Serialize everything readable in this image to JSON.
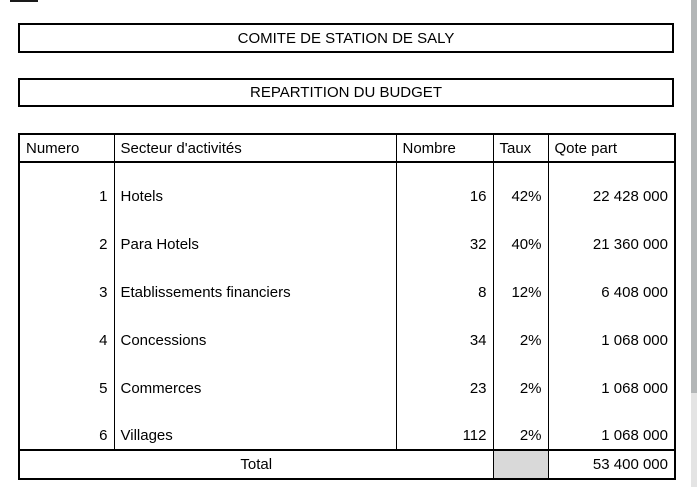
{
  "banners": {
    "title": "COMITE DE STATION DE SALY",
    "subtitle": "REPARTITION DU BUDGET"
  },
  "table": {
    "columns": [
      "Numero",
      "Secteur d'activités",
      "Nombre",
      "Taux",
      "Qote part"
    ],
    "rows": [
      {
        "numero": "1",
        "secteur": "Hotels",
        "nombre": "16",
        "taux": "42%",
        "qote": "22 428 000"
      },
      {
        "numero": "2",
        "secteur": "Para Hotels",
        "nombre": "32",
        "taux": "40%",
        "qote": "21 360 000"
      },
      {
        "numero": "3",
        "secteur": "Etablissements financiers",
        "nombre": "8",
        "taux": "12%",
        "qote": "6 408 000"
      },
      {
        "numero": "4",
        "secteur": "Concessions",
        "nombre": "34",
        "taux": "2%",
        "qote": "1 068 000"
      },
      {
        "numero": "5",
        "secteur": "Commerces",
        "nombre": "23",
        "taux": "2%",
        "qote": "1 068 000"
      },
      {
        "numero": "6",
        "secteur": "Villages",
        "nombre": "112",
        "taux": "2%",
        "qote": "1 068 000"
      }
    ],
    "total": {
      "label": "Total",
      "qote": "53 400 000"
    }
  },
  "colors": {
    "border": "#000000",
    "total_blank_cell": "#d9d9d9",
    "scrollbar_thumb": "#b3b6b7",
    "scrollbar_track": "#e4e4e4"
  }
}
